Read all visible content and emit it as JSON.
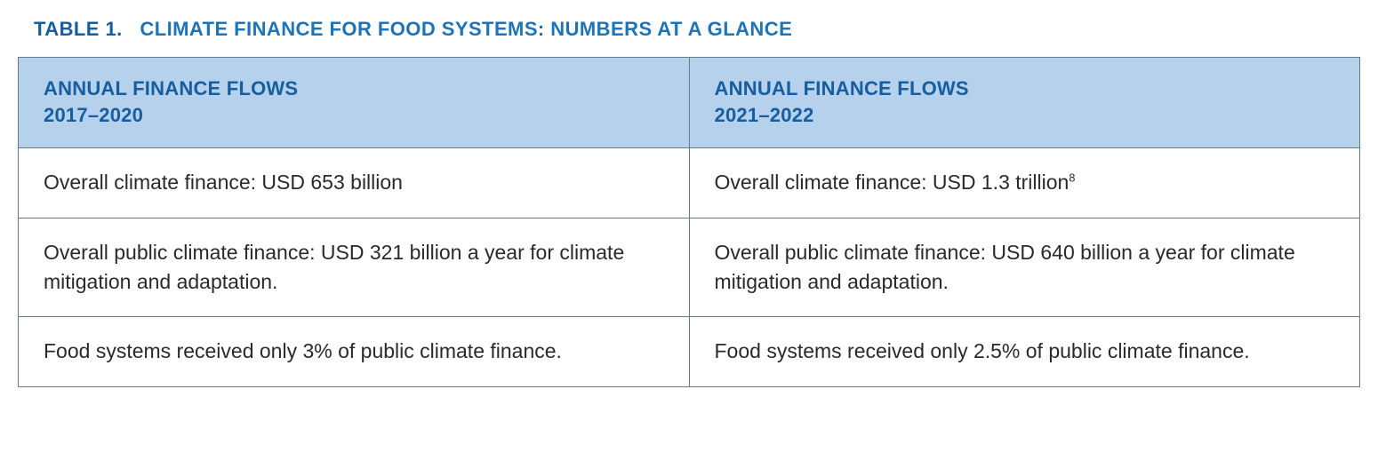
{
  "caption": {
    "prefix": "TABLE 1.",
    "title": "CLIMATE FINANCE FOR FOOD SYSTEMS: NUMBERS AT A GLANCE",
    "prefix_color": "#175ea0",
    "title_color": "#1e74b8",
    "fontsize": 22,
    "fontweight": 700
  },
  "table": {
    "type": "table",
    "border_color": "#6b7b86",
    "header_bg": "#b6d1ec",
    "header_text_color": "#175ea0",
    "header_fontsize": 22,
    "body_text_color": "#2a2a2a",
    "body_fontsize": 23,
    "columns": [
      {
        "line1": "ANNUAL FINANCE FLOWS",
        "line2": "2017–2020",
        "width_pct": 50
      },
      {
        "line1": "ANNUAL FINANCE FLOWS",
        "line2": "2021–2022",
        "width_pct": 50
      }
    ],
    "rows": [
      {
        "c0": {
          "text": "Overall climate finance: USD 653 billion",
          "sup": ""
        },
        "c1": {
          "text": "Overall climate finance: USD 1.3 trillion",
          "sup": "8"
        }
      },
      {
        "c0": {
          "text": "Overall public climate finance: USD 321 billion a year for climate mitigation and adaptation.",
          "sup": ""
        },
        "c1": {
          "text": "Overall public climate finance: USD 640 billion a year for climate mitigation and adaptation.",
          "sup": ""
        }
      },
      {
        "c0": {
          "text": "Food systems received only 3% of public climate finance.",
          "sup": ""
        },
        "c1": {
          "text": "Food systems received only 2.5% of public climate finance.",
          "sup": ""
        }
      }
    ]
  }
}
